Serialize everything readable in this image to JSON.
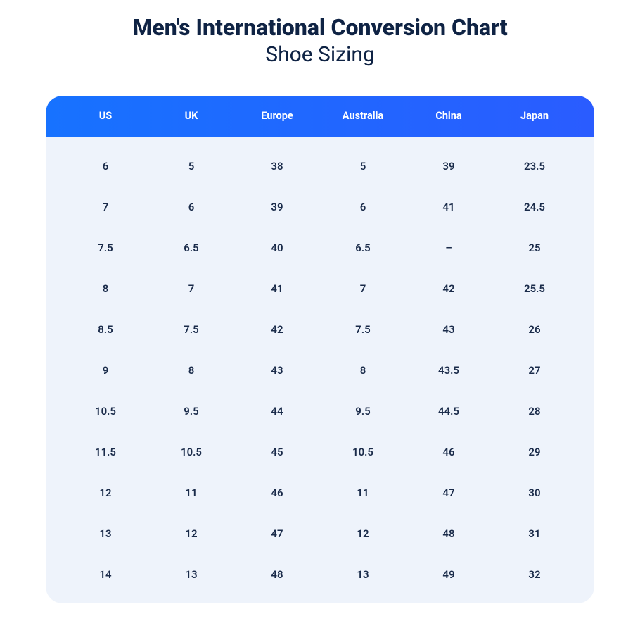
{
  "title": "Men's International Conversion Chart",
  "subtitle": "Shoe Sizing",
  "styling": {
    "header_background": "linear-gradient(90deg, #1772ff 0%, #2a5cff 100%)",
    "header_text_color": "#ffffff",
    "body_background": "#eef3fb",
    "cell_text_color": "#1a2b4a",
    "title_color": "#0f2344",
    "border_radius": "24px",
    "title_fontsize": 32,
    "subtitle_fontsize": 30,
    "header_fontsize": 14.5,
    "cell_fontsize": 15
  },
  "columns": [
    "US",
    "UK",
    "Europe",
    "Australia",
    "China",
    "Japan"
  ],
  "rows": [
    [
      "6",
      "5",
      "38",
      "5",
      "39",
      "23.5"
    ],
    [
      "7",
      "6",
      "39",
      "6",
      "41",
      "24.5"
    ],
    [
      "7.5",
      "6.5",
      "40",
      "6.5",
      "–",
      "25"
    ],
    [
      "8",
      "7",
      "41",
      "7",
      "42",
      "25.5"
    ],
    [
      "8.5",
      "7.5",
      "42",
      "7.5",
      "43",
      "26"
    ],
    [
      "9",
      "8",
      "43",
      "8",
      "43.5",
      "27"
    ],
    [
      "10.5",
      "9.5",
      "44",
      "9.5",
      "44.5",
      "28"
    ],
    [
      "11.5",
      "10.5",
      "45",
      "10.5",
      "46",
      "29"
    ],
    [
      "12",
      "11",
      "46",
      "11",
      "47",
      "30"
    ],
    [
      "13",
      "12",
      "47",
      "12",
      "48",
      "31"
    ],
    [
      "14",
      "13",
      "48",
      "13",
      "49",
      "32"
    ]
  ]
}
